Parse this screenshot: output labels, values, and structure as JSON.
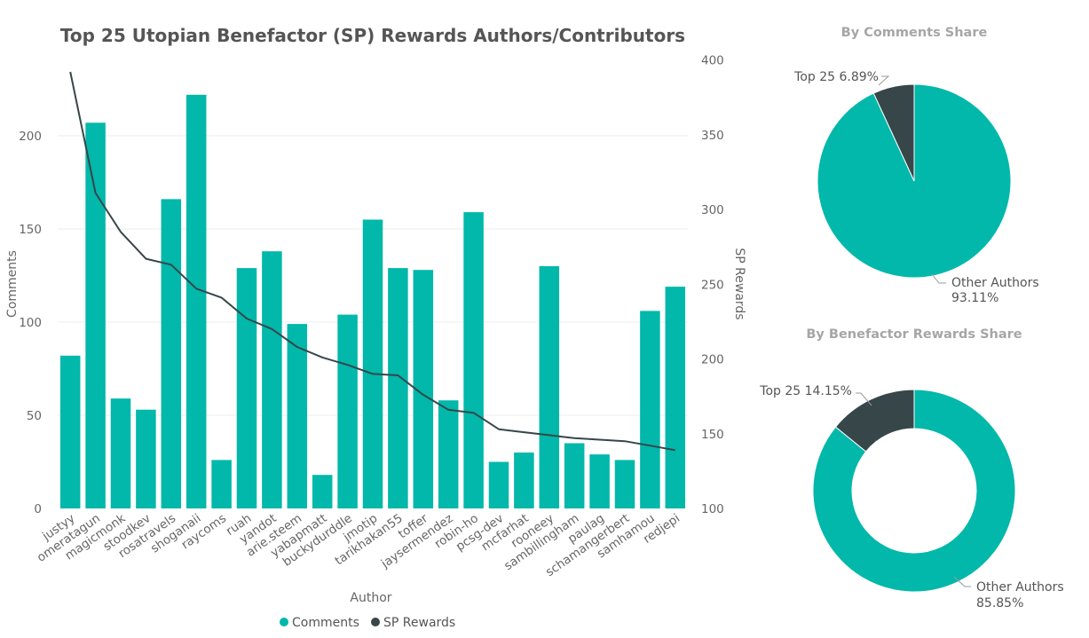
{
  "colors": {
    "bars": "#01b8aa",
    "line": "#374649",
    "text": "#555555",
    "subtitle": "#a6a6a6"
  },
  "chart_data": [
    {
      "type": "bar",
      "title": "Top 25 Utopian Benefactor (SP) Rewards Authors/Contributors",
      "xlabel": "Author",
      "ylabel": "Comments",
      "y2label": "SP Rewards",
      "ylim": [
        0,
        240
      ],
      "yticks": [
        0,
        50,
        100,
        150,
        200
      ],
      "y2lim": [
        100,
        400
      ],
      "y2ticks": [
        100,
        150,
        200,
        250,
        300,
        350,
        400
      ],
      "grid": true,
      "legend_position": "bottom",
      "categories": [
        "justyy",
        "omeratagun",
        "magicmonk",
        "stoodkev",
        "rosatravels",
        "shoganaii",
        "raycoms",
        "ruah",
        "yandot",
        "arie.steem",
        "yabapmatt",
        "buckydurddle",
        "jmotip",
        "tarikhakan55",
        "toffer",
        "jaysermendez",
        "robin-ho",
        "pcsg-dev",
        "mcfarhat",
        "rooneey",
        "sambillingham",
        "paulag",
        "schamangerbert",
        "samhamou",
        "redjepi"
      ],
      "series": [
        {
          "name": "Comments",
          "kind": "bar",
          "axis": "left",
          "values": [
            82,
            207,
            59,
            53,
            166,
            222,
            26,
            129,
            138,
            99,
            18,
            104,
            155,
            129,
            128,
            58,
            159,
            25,
            30,
            130,
            35,
            29,
            26,
            106,
            119
          ]
        },
        {
          "name": "SP Rewards",
          "kind": "line",
          "axis": "right",
          "values": [
            392,
            311,
            285,
            267,
            263,
            247,
            241,
            227,
            220,
            208,
            201,
            196,
            190,
            189,
            176,
            166,
            164,
            153,
            151,
            149,
            147,
            146,
            145,
            142,
            139
          ]
        }
      ]
    },
    {
      "type": "pie",
      "title": "By Comments Share",
      "slices": [
        {
          "label": "Top 25",
          "value": 6.89,
          "display": "Top 25 6.89%",
          "color": "#374649"
        },
        {
          "label": "Other Authors",
          "value": 93.11,
          "display_line1": "Other Authors",
          "display_line2": "93.11%",
          "color": "#01b8aa"
        }
      ]
    },
    {
      "type": "donut",
      "title": "By Benefactor Rewards Share",
      "slices": [
        {
          "label": "Top 25",
          "value": 14.15,
          "display": "Top 25 14.15%",
          "color": "#374649"
        },
        {
          "label": "Other Authors",
          "value": 85.85,
          "display_line1": "Other Authors",
          "display_line2": "85.85%",
          "color": "#01b8aa"
        }
      ]
    }
  ]
}
